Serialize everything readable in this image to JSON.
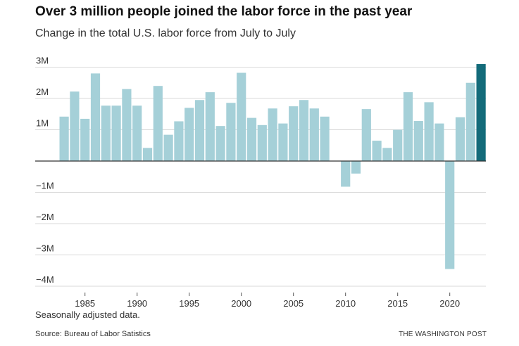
{
  "title": "Over 3 million people joined the labor force in the past year",
  "subtitle": "Change in the total U.S. labor force from July to July",
  "note": "Seasonally adjusted data.",
  "source": "Source: Bureau of Labor Satistics",
  "credit": "THE WASHINGTON POST",
  "colors": {
    "bar": "#a5d0d8",
    "highlight": "#136b7a",
    "grid": "#d9d9d9",
    "zero": "#333333"
  },
  "chart_data": {
    "type": "bar",
    "x": [
      1983,
      1984,
      1985,
      1986,
      1987,
      1988,
      1989,
      1990,
      1991,
      1992,
      1993,
      1994,
      1995,
      1996,
      1997,
      1998,
      1999,
      2000,
      2001,
      2002,
      2003,
      2004,
      2005,
      2006,
      2007,
      2008,
      2009,
      2010,
      2011,
      2012,
      2013,
      2014,
      2015,
      2016,
      2017,
      2018,
      2019,
      2020,
      2021,
      2022,
      2023
    ],
    "values": [
      1.42,
      2.22,
      1.35,
      2.8,
      1.77,
      1.77,
      2.3,
      1.77,
      0.42,
      2.4,
      0.84,
      1.27,
      1.7,
      1.95,
      2.2,
      1.12,
      1.86,
      2.82,
      1.38,
      1.15,
      1.68,
      1.2,
      1.75,
      1.95,
      1.68,
      1.42,
      0,
      -0.82,
      -0.4,
      1.66,
      0.65,
      0.42,
      1.0,
      2.2,
      1.28,
      1.88,
      1.2,
      -3.45,
      1.4,
      2.5,
      3.1
    ],
    "highlight_index": 40,
    "y_ticks": [
      3,
      2,
      1,
      0,
      -1,
      -2,
      -3,
      -4
    ],
    "y_tick_labels": [
      "3M",
      "2M",
      "1M",
      "",
      "−1M",
      "−2M",
      "−3M",
      "−4M"
    ],
    "x_ticks": [
      1985,
      1990,
      1995,
      2000,
      2005,
      2010,
      2015,
      2020
    ],
    "x_tick_labels": [
      "1985",
      "1990",
      "1995",
      "2000",
      "2005",
      "2010",
      "2015",
      "2020"
    ],
    "ylim": [
      -4,
      3.1
    ],
    "unit": "millions of people",
    "grid": true
  }
}
